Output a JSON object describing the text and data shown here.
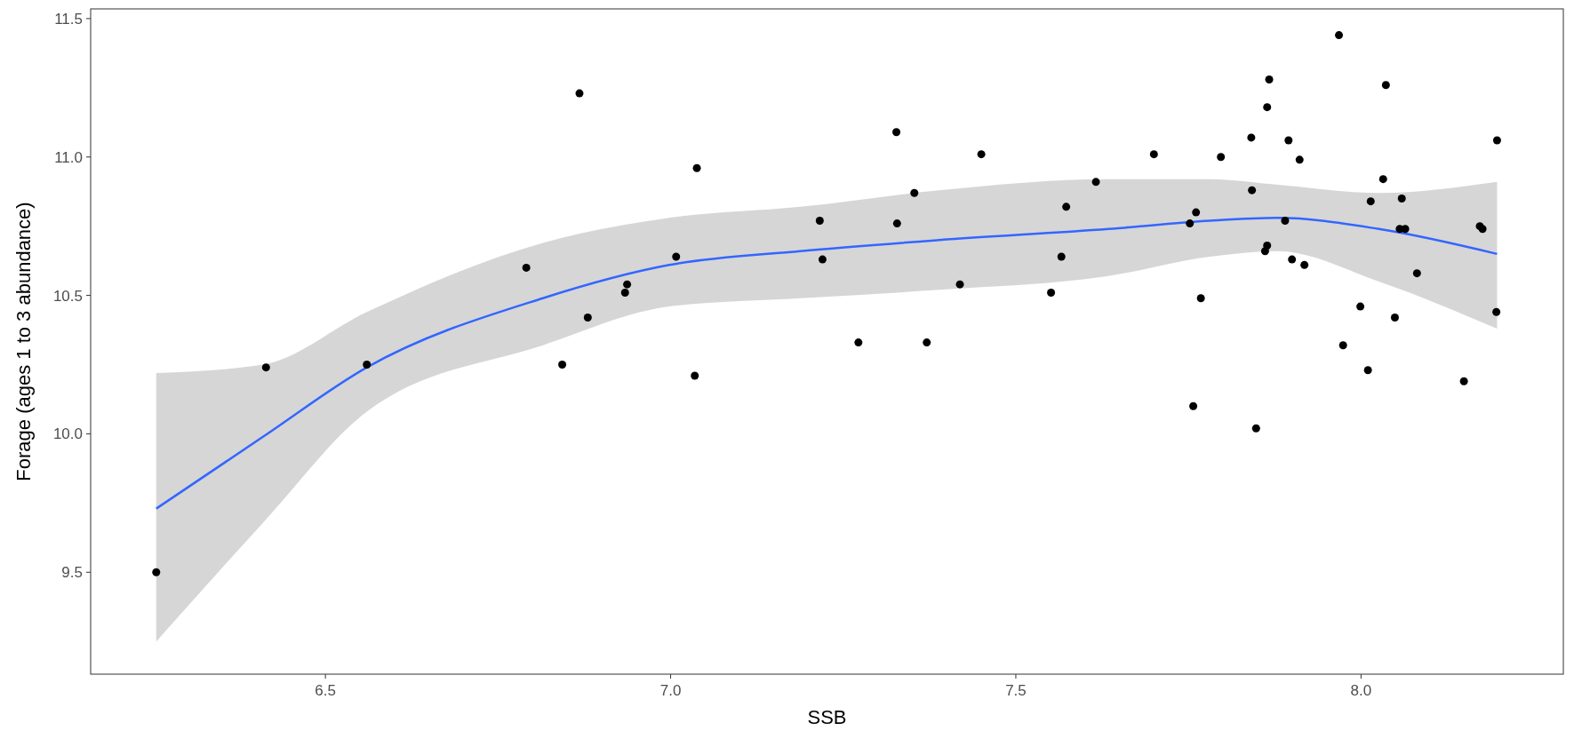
{
  "chart_data": {
    "type": "scatter",
    "xlabel": "SSB",
    "ylabel": "Forage (ages 1 to 3 abundance)",
    "xlim": [
      6.16,
      8.293
    ],
    "ylim": [
      9.132,
      11.535
    ],
    "xticks": [
      6.5,
      {
        "value": 7,
        "label": "7.0"
      },
      7.5,
      {
        "value": 8,
        "label": "8.0"
      }
    ],
    "yticks": [
      9.5,
      {
        "value": 10,
        "label": "10.0"
      },
      10.5,
      {
        "value": 11,
        "label": "11.0"
      },
      11.5
    ],
    "marker": "circle",
    "series": [
      {
        "color": "#000000",
        "x": [
          6.255,
          6.414,
          6.56,
          6.791,
          6.868,
          6.843,
          6.88,
          6.937,
          6.934,
          7.008,
          7.038,
          7.035,
          7.216,
          7.22,
          7.272,
          7.327,
          7.328,
          7.353,
          7.371,
          7.419,
          7.45,
          7.551,
          7.566,
          7.573,
          7.616,
          7.7,
          7.752,
          7.761,
          7.757,
          7.768,
          7.797,
          7.841,
          7.842,
          7.848,
          7.864,
          7.867,
          7.864,
          7.861,
          7.89,
          7.895,
          7.9,
          7.911,
          7.918,
          7.968,
          7.974,
          7.999,
          8.01,
          8.014,
          8.032,
          8.036,
          8.049,
          8.059,
          8.056,
          8.064,
          8.081,
          8.149,
          8.172,
          8.176,
          8.197,
          8.196
        ],
        "values": [
          9.5,
          10.24,
          10.25,
          10.6,
          11.23,
          10.25,
          10.42,
          10.54,
          10.51,
          10.64,
          10.96,
          10.21,
          10.77,
          10.63,
          10.33,
          11.09,
          10.76,
          10.87,
          10.33,
          10.54,
          11.01,
          10.51,
          10.64,
          10.82,
          10.91,
          11.01,
          10.76,
          10.8,
          10.1,
          10.49,
          11.0,
          11.07,
          10.88,
          10.02,
          11.18,
          11.28,
          10.68,
          10.66,
          10.77,
          11.06,
          10.63,
          10.99,
          10.61,
          11.44,
          10.32,
          10.46,
          10.23,
          10.84,
          10.92,
          11.26,
          10.42,
          10.85,
          10.74,
          10.74,
          10.58,
          10.19,
          10.75,
          10.74,
          11.06,
          10.44
        ]
      },
      {
        "type": "line",
        "color": "#3366ff",
        "line_style": "solid",
        "marker": "none",
        "x": [
          6.255,
          6.41,
          6.56,
          6.815,
          6.998,
          7.188,
          7.389,
          7.634,
          7.781,
          7.879,
          8.026,
          8.197
        ],
        "values": [
          9.73,
          9.99,
          10.24,
          10.49,
          10.61,
          10.66,
          10.7,
          10.74,
          10.77,
          10.78,
          10.74,
          10.65
        ],
        "lower": [
          9.25,
          9.68,
          10.08,
          10.32,
          10.46,
          10.49,
          10.52,
          10.57,
          10.64,
          10.66,
          10.55,
          10.38
        ],
        "upper": [
          10.22,
          10.25,
          10.44,
          10.69,
          10.78,
          10.82,
          10.88,
          10.92,
          10.92,
          10.9,
          10.87,
          10.91
        ]
      }
    ]
  }
}
